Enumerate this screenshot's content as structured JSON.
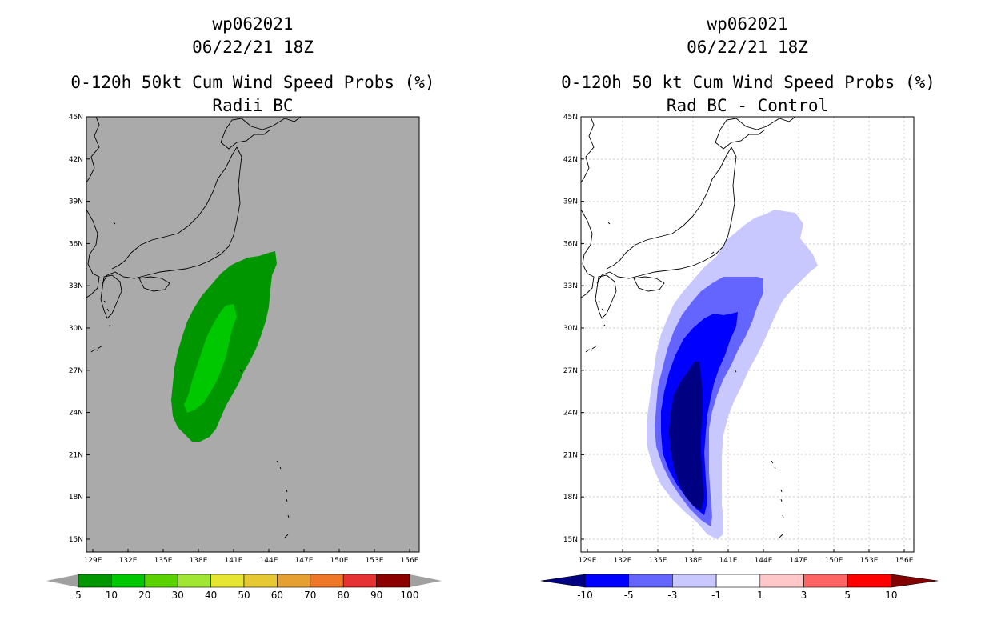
{
  "left": {
    "storm": "wp062021",
    "datetime": "06/22/21 18Z",
    "title": "0-120h 50kt Cum Wind Speed Probs (%)",
    "subtitle": "Radii BC",
    "background": "#aaaaaa",
    "colorbar": {
      "labels": [
        "5",
        "10",
        "20",
        "30",
        "40",
        "50",
        "60",
        "70",
        "80",
        "90",
        "100"
      ],
      "colors": [
        "#009600",
        "#00c800",
        "#5ad200",
        "#a0e632",
        "#e6e632",
        "#e6c832",
        "#e6a032",
        "#ee7828",
        "#e63232",
        "#8c0000",
        "#8c00d2"
      ]
    }
  },
  "right": {
    "storm": "wp062021",
    "datetime": "06/22/21 18Z",
    "title": "0-120h 50 kt Cum Wind Speed Probs (%)",
    "subtitle": "Rad BC - Control",
    "background": "#ffffff",
    "colorbar": {
      "labels": [
        "-10",
        "-5",
        "-3",
        "-1",
        "1",
        "3",
        "5",
        "10"
      ],
      "colors": [
        "#000082",
        "#0000ff",
        "#6464ff",
        "#c8c8ff",
        "#ffffff",
        "#ffc8c8",
        "#ff6464",
        "#ff0000",
        "#820000"
      ]
    }
  },
  "axes": {
    "lat_labels": [
      "45N",
      "42N",
      "39N",
      "36N",
      "33N",
      "30N",
      "27N",
      "24N",
      "21N",
      "18N",
      "15N"
    ],
    "lon_labels": [
      "129E",
      "132E",
      "135E",
      "138E",
      "141E",
      "144E",
      "147E",
      "150E",
      "153E",
      "156E"
    ]
  }
}
